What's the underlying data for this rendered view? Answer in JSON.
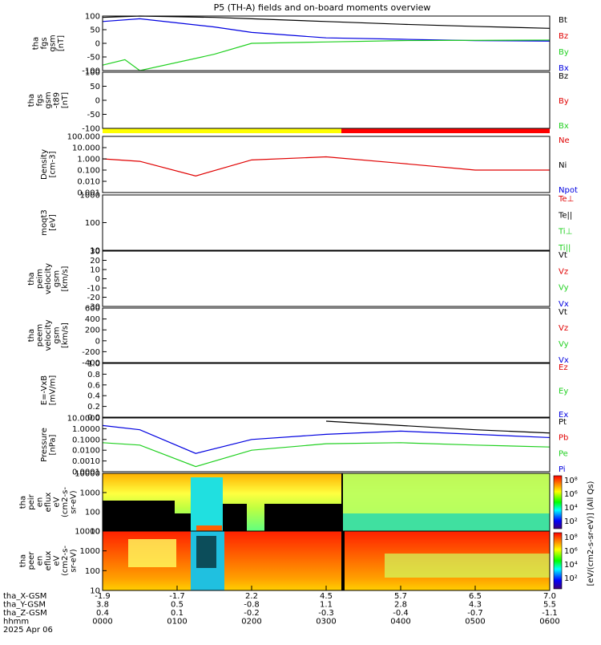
{
  "title": "P5 (TH-A) fields and on-board moments overview",
  "colors": {
    "black": "#000000",
    "red": "#e00000",
    "green": "#20d020",
    "blue": "#0000e0",
    "darkred": "#8b0000"
  },
  "panels": [
    {
      "id": "fgs",
      "ylabel": [
        "tha",
        "fgs",
        "gsm",
        "[nT]"
      ],
      "ticks": [
        "100",
        "50",
        "0",
        "-50",
        "-100"
      ],
      "legend": [
        {
          "text": "Bt",
          "c": "black"
        },
        {
          "text": "Bz",
          "c": "red"
        },
        {
          "text": "By",
          "c": "green"
        },
        {
          "text": "Bx",
          "c": "blue"
        }
      ]
    },
    {
      "id": "fgs_hi",
      "ylabel": [
        "tha",
        "fgs",
        "gsm",
        "-t89",
        "[nT]"
      ],
      "ticks": [
        "100",
        "50",
        "0",
        "-50",
        "-100"
      ],
      "legend": [
        {
          "text": "Bz",
          "c": "black"
        },
        {
          "text": "By",
          "c": "red"
        },
        {
          "text": "Bx",
          "c": "green"
        }
      ]
    },
    {
      "id": "density",
      "ylabel": [
        "Density",
        "[cm-3]"
      ],
      "ticks": [
        "100.000",
        "10.000",
        "1.000",
        "0.100",
        "0.010",
        "0.001"
      ],
      "legend": [
        {
          "text": "Ne",
          "c": "red"
        },
        {
          "text": "Ni",
          "c": "black"
        },
        {
          "text": "Npot",
          "c": "blue"
        }
      ]
    },
    {
      "id": "temp",
      "ylabel": [
        "moqt3",
        "[eV]"
      ],
      "ticks": [
        "1000",
        "100",
        "10"
      ],
      "legend": [
        {
          "text": "Te⊥",
          "c": "red"
        },
        {
          "text": "Te||",
          "c": "black"
        },
        {
          "text": "Ti⊥",
          "c": "green"
        },
        {
          "text": "Ti||",
          "c": "green"
        }
      ]
    },
    {
      "id": "vi",
      "ylabel": [
        "tha",
        "peim",
        "velocity",
        "gsm",
        "[km/s]"
      ],
      "ticks": [
        "30",
        "20",
        "10",
        "0",
        "-10",
        "-20",
        "-30"
      ],
      "legend": [
        {
          "text": "Vt",
          "c": "black"
        },
        {
          "text": "Vz",
          "c": "red"
        },
        {
          "text": "Vy",
          "c": "green"
        },
        {
          "text": "Vx",
          "c": "blue"
        }
      ]
    },
    {
      "id": "ve",
      "ylabel": [
        "tha",
        "peem",
        "velocity",
        "gsm",
        "[km/s]"
      ],
      "ticks": [
        "600",
        "400",
        "200",
        "0",
        "-200",
        "-400"
      ],
      "legend": [
        {
          "text": "Vt",
          "c": "black"
        },
        {
          "text": "Vz",
          "c": "red"
        },
        {
          "text": "Vy",
          "c": "green"
        },
        {
          "text": "Vx",
          "c": "blue"
        }
      ]
    },
    {
      "id": "efield",
      "ylabel": [
        "E=-VxB",
        "[mV/m]"
      ],
      "ticks": [
        "1.0",
        "0.8",
        "0.6",
        "0.4",
        "0.2",
        "0.0"
      ],
      "legend": [
        {
          "text": "Ez",
          "c": "red"
        },
        {
          "text": "Ey",
          "c": "green"
        },
        {
          "text": "Ex",
          "c": "blue"
        }
      ]
    },
    {
      "id": "pressure",
      "ylabel": [
        "Pressure",
        "[nPa]"
      ],
      "ticks": [
        "10.0000",
        "1.0000",
        "0.1000",
        "0.0100",
        "0.0010",
        "0.0001"
      ],
      "legend": [
        {
          "text": "Pt",
          "c": "black"
        },
        {
          "text": "Pb",
          "c": "red"
        },
        {
          "text": "Pe",
          "c": "green"
        },
        {
          "text": "Pi",
          "c": "blue"
        }
      ]
    },
    {
      "id": "peir",
      "ylabel": [
        "tha",
        "peir",
        "en",
        "eflux",
        "eV",
        "(cm2-s-",
        "sr-eV)"
      ],
      "ticks": [
        "10000",
        "1000",
        "100",
        "10"
      ],
      "legend": []
    },
    {
      "id": "peer",
      "ylabel": [
        "tha",
        "peer",
        "en",
        "eflux",
        "eV",
        "(cm2-s-",
        "sr-eV)"
      ],
      "ticks": [
        "10000",
        "1000",
        "100",
        "10"
      ],
      "legend": []
    }
  ],
  "colorbar": {
    "label": "[eV/(cm2-s-sr-eV)] (All Qs)",
    "ticks_top": [
      "10⁸",
      "10⁶",
      "10⁴",
      "10²"
    ],
    "ticks_bottom": [
      "10⁸",
      "10⁶",
      "10⁴",
      "10²"
    ]
  },
  "xaxis": {
    "rows": [
      {
        "name": "tha_X-GSM",
        "values": [
          "-1.9",
          "-1.7",
          "2.2",
          "4.5",
          "5.7",
          "6.5",
          "7.0"
        ]
      },
      {
        "name": "tha_Y-GSM",
        "values": [
          "3.8",
          "0.5",
          "-0.8",
          "1.1",
          "2.8",
          "4.3",
          "5.5"
        ]
      },
      {
        "name": "tha_Z-GSM",
        "values": [
          "0.4",
          "0.1",
          "-0.2",
          "-0.3",
          "-0.4",
          "-0.7",
          "-1.1"
        ]
      },
      {
        "name": "hhmm",
        "values": [
          "0000",
          "0100",
          "0200",
          "0300",
          "0400",
          "0500",
          "0600"
        ]
      }
    ],
    "date": "2025 Apr 06"
  },
  "chart_data": {
    "type": "line",
    "title": "P5 (TH-A) fields and on-board moments overview",
    "x_hhmm": [
      "0000",
      "0100",
      "0200",
      "0300",
      "0400",
      "0500",
      "0600"
    ],
    "series": [
      {
        "name": "Bt",
        "x": [
          0,
          0.5,
          1.5,
          2,
          3,
          4,
          5,
          6
        ],
        "values": [
          95,
          100,
          95,
          90,
          80,
          70,
          62,
          55
        ]
      },
      {
        "name": "Bx",
        "x": [
          0,
          0.5,
          1.5,
          2,
          3,
          4,
          5,
          6
        ],
        "values": [
          80,
          90,
          60,
          40,
          20,
          15,
          10,
          8
        ]
      },
      {
        "name": "By",
        "x": [
          0,
          0.3,
          0.5,
          1.5,
          2,
          3,
          4,
          6
        ],
        "values": [
          -80,
          -60,
          -100,
          -40,
          0,
          5,
          10,
          12
        ]
      },
      {
        "name": "Ne",
        "x": [
          0,
          0.5,
          1.25,
          2,
          3,
          4,
          5,
          6
        ],
        "values": [
          1,
          0.6,
          0.03,
          0.8,
          1.5,
          0.4,
          0.1,
          0.1
        ]
      },
      {
        "name": "Pt",
        "x": [
          3,
          4,
          5,
          6
        ],
        "values": [
          5,
          2,
          0.8,
          0.4
        ]
      },
      {
        "name": "Pi",
        "x": [
          0,
          0.5,
          1.25,
          2,
          3,
          4,
          5,
          6
        ],
        "values": [
          2,
          0.8,
          0.005,
          0.1,
          0.3,
          0.6,
          0.3,
          0.15
        ]
      },
      {
        "name": "Pe",
        "x": [
          0,
          0.5,
          1.25,
          2,
          3,
          4,
          5,
          6
        ],
        "values": [
          0.05,
          0.03,
          0.0003,
          0.01,
          0.04,
          0.05,
          0.03,
          0.02
        ]
      }
    ]
  }
}
